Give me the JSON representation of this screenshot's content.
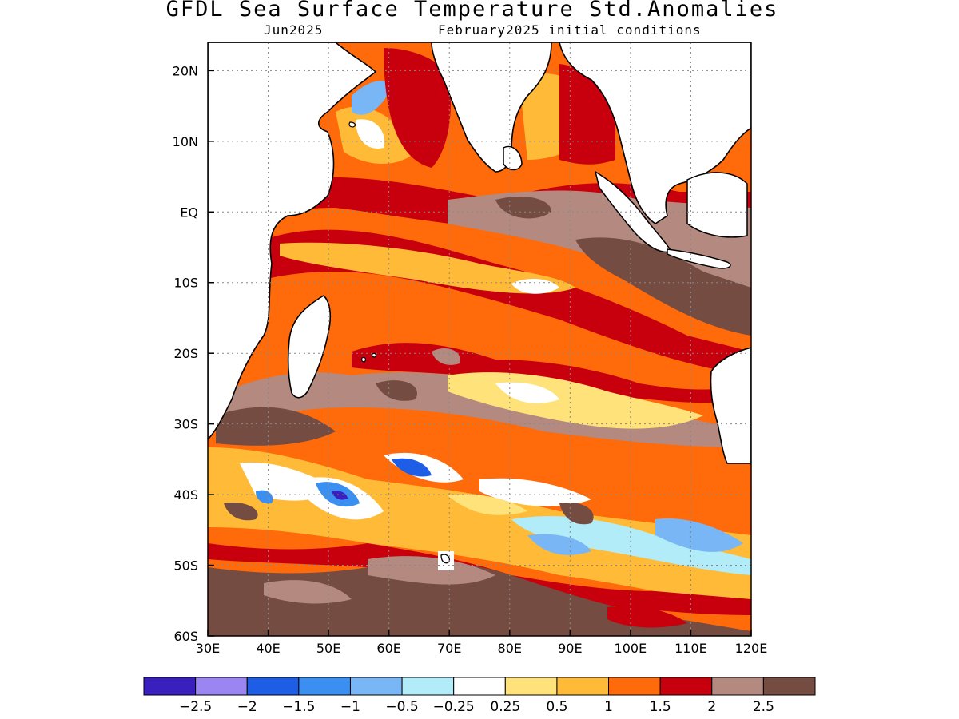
{
  "title": "GFDL Sea Surface Temperature Std.Anomalies",
  "subtitle_left": "Jun2025",
  "subtitle_right": "February2025 initial conditions",
  "map": {
    "lon_range": [
      30,
      120
    ],
    "lat_range": [
      -60,
      24
    ],
    "lon_ticks": [
      "30E",
      "40E",
      "50E",
      "60E",
      "70E",
      "80E",
      "90E",
      "100E",
      "110E",
      "120E"
    ],
    "lat_ticks": [
      "20N",
      "10N",
      "EQ",
      "10S",
      "20S",
      "30S",
      "40S",
      "50S",
      "60S"
    ],
    "grid": true
  },
  "colorbar": {
    "colors": [
      "#3a1fbf",
      "#9a85f2",
      "#1e5ee6",
      "#3a8ff0",
      "#78b6f5",
      "#b2ecf8",
      "#ffffff",
      "#ffe27a",
      "#ffbb38",
      "#ff6a0a",
      "#c8000e",
      "#b48a80",
      "#744c42"
    ],
    "labels": [
      "−2.5",
      "−2",
      "−1.5",
      "−1",
      "−0.5",
      "−0.25",
      "0.25",
      "0.5",
      "1",
      "1.5",
      "2",
      "2.5"
    ]
  }
}
